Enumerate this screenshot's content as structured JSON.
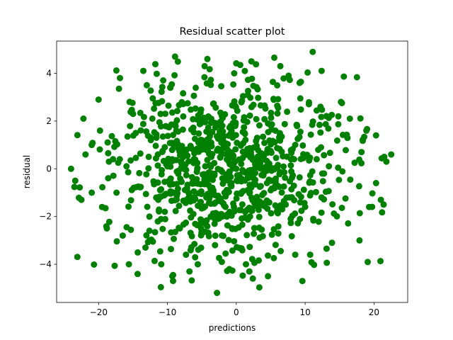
{
  "chart_data": {
    "type": "scatter",
    "title": "Residual scatter plot",
    "xlabel": "predictions",
    "ylabel": "residual",
    "xlim": [
      -26.1,
      24.9
    ],
    "ylim": [
      -5.6,
      5.35
    ],
    "xticks": [
      -20,
      -10,
      0,
      10,
      20
    ],
    "yticks": [
      -4,
      -2,
      0,
      2,
      4
    ],
    "xtick_labels": [
      "−20",
      "−10",
      "0",
      "10",
      "20"
    ],
    "ytick_labels": [
      "−4",
      "−2",
      "0",
      "2",
      "4"
    ],
    "grid": false,
    "marker_color": "#008000",
    "generated_cloud": {
      "count": 900,
      "x_mean": -1.0,
      "x_sd": 8.5,
      "y_sd": 1.9,
      "x_range": [
        -24,
        22.5
      ],
      "y_range": [
        -5.2,
        5.0
      ],
      "seed": 7
    },
    "series": [
      {
        "points": [
          [
            -24.0,
            0.0
          ],
          [
            -23.4,
            -0.5
          ],
          [
            -22.5,
            -1.3
          ],
          [
            -22.2,
            2.1
          ],
          [
            -21.9,
            0.6
          ],
          [
            -21.0,
            1.0
          ],
          [
            -21.0,
            -1.0
          ],
          [
            -20.0,
            2.9
          ],
          [
            -19.8,
            1.6
          ],
          [
            -19.5,
            -1.6
          ],
          [
            -18.8,
            -2.5
          ],
          [
            -18.5,
            0.3
          ],
          [
            -17.9,
            0.4
          ],
          [
            -17.4,
            -1.0
          ],
          [
            -16.9,
            3.8
          ],
          [
            -16.5,
            -2.8
          ],
          [
            -15.6,
            -4.0
          ],
          [
            -15.5,
            2.8
          ],
          [
            -15.0,
            2.3
          ],
          [
            -14.6,
            1.5
          ],
          [
            -13.5,
            4.1
          ],
          [
            -13.0,
            3.5
          ],
          [
            -13.2,
            -3.3
          ],
          [
            -12.6,
            -3.0
          ],
          [
            -12.2,
            2.1
          ],
          [
            -11.6,
            1.3
          ],
          [
            -11.0,
            2.3
          ],
          [
            -10.9,
            -4.0
          ],
          [
            -9.6,
            3.4
          ],
          [
            -9.3,
            -4.5
          ],
          [
            -8.9,
            4.7
          ],
          [
            -8.2,
            -2.5
          ],
          [
            -7.3,
            -3.6
          ],
          [
            -6.8,
            -4.3
          ],
          [
            -5.6,
            -4.0
          ],
          [
            -4.6,
            4.3
          ],
          [
            -4.2,
            4.6
          ],
          [
            -2.8,
            -5.2
          ],
          [
            -2.1,
            -3.9
          ],
          [
            -0.3,
            4.0
          ],
          [
            1.4,
            -4.0
          ],
          [
            1.9,
            -4.3
          ],
          [
            2.2,
            4.5
          ],
          [
            2.4,
            -4.6
          ],
          [
            4.6,
            -4.5
          ],
          [
            6.4,
            4.3
          ],
          [
            7.6,
            3.9
          ],
          [
            9.2,
            3.6
          ],
          [
            9.6,
            -4.7
          ],
          [
            11.1,
            4.9
          ],
          [
            12.4,
            4.1
          ],
          [
            13.9,
            -3.1
          ],
          [
            15.2,
            2.8
          ],
          [
            16.5,
            2.1
          ],
          [
            17.9,
            -3.0
          ],
          [
            18.9,
            1.6
          ],
          [
            19.3,
            -1.6
          ],
          [
            20.3,
            1.4
          ],
          [
            20.3,
            -0.6
          ],
          [
            21.0,
            -1.3
          ],
          [
            21.4,
            -1.5
          ],
          [
            21.5,
            0.5
          ],
          [
            21.8,
            0.3
          ],
          [
            22.5,
            0.6
          ],
          [
            -10.0,
            0.1
          ],
          [
            0.0,
            0.0
          ],
          [
            5.0,
            -0.9
          ],
          [
            -5.0,
            1.2
          ]
        ]
      }
    ]
  }
}
